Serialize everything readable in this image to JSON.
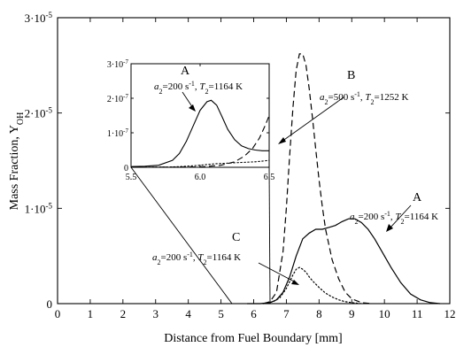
{
  "chart_data": {
    "type": "line",
    "xlabel": "Distance from Fuel Boundary [mm]",
    "ylabel": "Mass Fraction, Y",
    "ylabel_sub": "OH",
    "xlim": [
      0,
      12
    ],
    "ylim": [
      0,
      3e-05
    ],
    "x_ticks": [
      "0",
      "1",
      "2",
      "3",
      "4",
      "5",
      "6",
      "7",
      "8",
      "9",
      "10",
      "11",
      "12"
    ],
    "y_ticks": [
      {
        "value": 0,
        "base": "0",
        "exp": ""
      },
      {
        "value": 1e-05,
        "base": "1·10",
        "exp": "-5"
      },
      {
        "value": 2e-05,
        "base": "2·10",
        "exp": "-5"
      },
      {
        "value": 3e-05,
        "base": "3·10",
        "exp": "-5"
      }
    ],
    "series": [
      {
        "id": "A",
        "dash": "solid",
        "x": [
          5.8,
          6.2,
          6.5,
          6.7,
          6.9,
          7.1,
          7.3,
          7.5,
          7.7,
          7.9,
          8.1,
          8.3,
          8.5,
          8.7,
          8.9,
          9.1,
          9.3,
          9.5,
          9.7,
          9.9,
          10.2,
          10.5,
          10.8,
          11.1,
          11.4,
          11.7
        ],
        "y": [
          0,
          0,
          1e-07,
          4e-07,
          1.2e-06,
          2.8e-06,
          5e-06,
          6.8e-06,
          7.4e-06,
          7.8e-06,
          7.8e-06,
          8e-06,
          8.2e-06,
          8.6e-06,
          8.9e-06,
          8.9e-06,
          8.5e-06,
          7.8e-06,
          6.8e-06,
          5.6e-06,
          3.8e-06,
          2.2e-06,
          1e-06,
          4e-07,
          1e-07,
          0
        ]
      },
      {
        "id": "B",
        "dash": "dashed",
        "x": [
          6.3,
          6.5,
          6.7,
          6.9,
          7.0,
          7.1,
          7.2,
          7.3,
          7.4,
          7.5,
          7.6,
          7.7,
          7.8,
          7.9,
          8.0,
          8.1,
          8.2,
          8.4,
          8.6,
          8.8,
          9.0,
          9.3,
          9.6
        ],
        "y": [
          0,
          2e-07,
          1.2e-06,
          5.5e-06,
          1e-05,
          1.55e-05,
          2.05e-05,
          2.45e-05,
          2.62e-05,
          2.62e-05,
          2.5e-05,
          2.25e-05,
          1.95e-05,
          1.62e-05,
          1.3e-05,
          1.02e-05,
          7.8e-06,
          4.6e-06,
          2.6e-06,
          1.2e-06,
          5e-07,
          1e-07,
          0
        ]
      },
      {
        "id": "C",
        "dash": "dotted",
        "x": [
          6.3,
          6.6,
          6.8,
          7.0,
          7.2,
          7.3,
          7.4,
          7.5,
          7.6,
          7.7,
          7.8,
          8.0,
          8.2,
          8.4,
          8.6,
          8.8,
          9.0,
          9.3
        ],
        "y": [
          0,
          2e-07,
          6e-07,
          1.6e-06,
          3e-06,
          3.6e-06,
          3.8e-06,
          3.6e-06,
          3.3e-06,
          2.8e-06,
          2.4e-06,
          1.7e-06,
          1.1e-06,
          7e-07,
          4e-07,
          2e-07,
          1e-07,
          0
        ]
      }
    ],
    "inset": {
      "xlim": [
        5.5,
        6.5
      ],
      "ylim": [
        0,
        3e-07
      ],
      "x_ticks": [
        "5.5",
        "6.0",
        "6.5"
      ],
      "y_ticks": [
        {
          "value": 0,
          "base": "0",
          "exp": ""
        },
        {
          "value": 1e-07,
          "base": "1·10",
          "exp": "-7"
        },
        {
          "value": 2e-07,
          "base": "2·10",
          "exp": "-7"
        },
        {
          "value": 3e-07,
          "base": "3·10",
          "exp": "-7"
        }
      ],
      "series": [
        {
          "id": "A",
          "dash": "solid",
          "x": [
            5.5,
            5.6,
            5.7,
            5.8,
            5.85,
            5.9,
            5.95,
            6.0,
            6.05,
            6.08,
            6.12,
            6.16,
            6.2,
            6.25,
            6.3,
            6.35,
            6.4,
            6.45,
            6.5
          ],
          "y": [
            2e-09,
            3e-09,
            6e-09,
            2e-08,
            4e-08,
            7.5e-08,
            1.2e-07,
            1.65e-07,
            1.9e-07,
            1.94e-07,
            1.8e-07,
            1.45e-07,
            1.1e-07,
            8e-08,
            6.2e-08,
            5.4e-08,
            5e-08,
            4.8e-08,
            4.8e-08
          ]
        },
        {
          "id": "B",
          "dash": "dashed",
          "x": [
            5.5,
            6.0,
            6.15,
            6.25,
            6.32,
            6.38,
            6.43,
            6.47,
            6.5
          ],
          "y": [
            0,
            1e-09,
            6e-09,
            1.6e-08,
            3.2e-08,
            5.5e-08,
            8.5e-08,
            1.2e-07,
            1.5e-07
          ]
        },
        {
          "id": "C",
          "dash": "dotted",
          "x": [
            5.5,
            5.8,
            5.9,
            6.0,
            6.1,
            6.2,
            6.3,
            6.4,
            6.5
          ],
          "y": [
            0,
            1e-09,
            3e-09,
            6e-09,
            1e-08,
            1.2e-08,
            1.4e-08,
            1.6e-08,
            2e-08
          ]
        }
      ]
    },
    "annotations": [
      {
        "id": "ann_A_inset",
        "letter": "A",
        "a_val": "200",
        "t_val": "1164"
      },
      {
        "id": "ann_B",
        "letter": "B",
        "a_val": "500",
        "t_val": "1252"
      },
      {
        "id": "ann_A_main",
        "letter": "A",
        "a_val": "200",
        "t_val": "1164"
      },
      {
        "id": "ann_C",
        "letter": "C",
        "a_val": "200",
        "t_val": "1164"
      }
    ]
  }
}
